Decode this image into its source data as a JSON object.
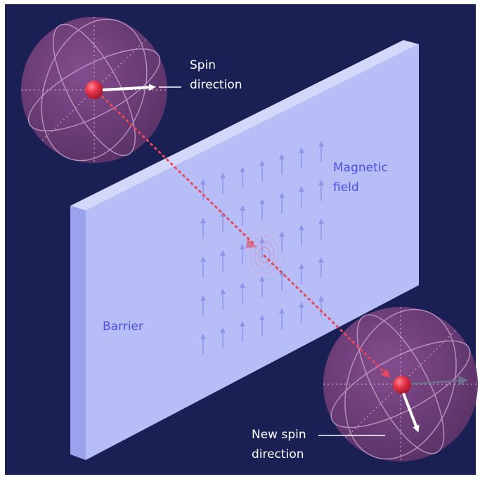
{
  "labels": {
    "spin_direction": [
      "Spin",
      "direction"
    ],
    "magnetic_field": [
      "Magnetic",
      "field"
    ],
    "barrier": "Barrier",
    "new_spin_direction": [
      "New spin",
      "direction"
    ]
  },
  "colors": {
    "background": "#1b2054",
    "frame": "#ffffff",
    "barrier_face": "#b7bdf6",
    "barrier_top": "#d3d8fb",
    "barrier_side": "#9aa2ee",
    "field_arrow": "#8e96ec",
    "label_white": "#ffffff",
    "label_blue": "#4c4fe0",
    "sphere_fill": "#6a3c72",
    "sphere_lines": "#c7a3cc",
    "particle": "#e8354b",
    "trajectory": "#e8465a"
  },
  "icons": {
    "top_sphere": "bloch-sphere-icon",
    "bottom_sphere": "bloch-sphere-icon",
    "particle": "particle-icon",
    "field": "arrow-up-icon"
  }
}
